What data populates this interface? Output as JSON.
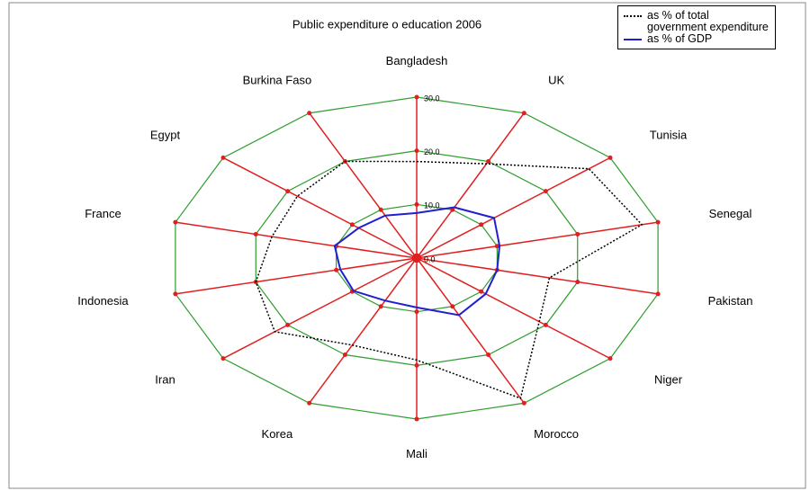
{
  "chart_data": {
    "type": "radar",
    "title": "Public expenditure o education 2006",
    "categories": [
      "Bangladesh",
      "UK",
      "Tunisia",
      "Senegal",
      "Pakistan",
      "Niger",
      "Morocco",
      "Mali",
      "Korea",
      "Iran",
      "Indonesia",
      "France",
      "Egypt",
      "Burkina Faso"
    ],
    "series": [
      {
        "name": "as % of total government expenditure",
        "color": "#000000",
        "dash": true,
        "values": [
          18,
          19.5,
          26.7,
          28,
          16.5,
          19,
          29,
          19,
          18,
          22,
          20,
          18,
          18.5,
          20
        ]
      },
      {
        "name": "as % of GDP",
        "color": "#2020d0",
        "dash": false,
        "values": [
          8.4,
          10.5,
          12,
          10.3,
          10,
          10.7,
          11.8,
          9.2,
          8.8,
          9.8,
          9.5,
          10.2,
          9,
          8.8
        ]
      }
    ],
    "ylim": [
      0,
      30
    ],
    "yticks": [
      {
        "value": 0,
        "label": "0.0"
      },
      {
        "value": 10,
        "label": "10.0"
      },
      {
        "value": 20,
        "label": "20.0"
      },
      {
        "value": 30,
        "label": "30.0"
      }
    ],
    "grid": true,
    "grid_color": "#2e9e2e",
    "spoke_color": "#e02020",
    "legend": "top-right"
  }
}
